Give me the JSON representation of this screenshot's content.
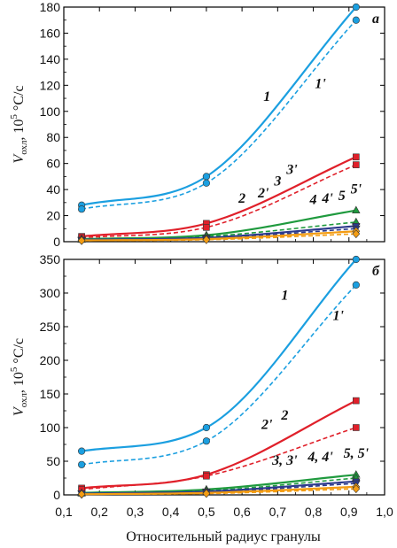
{
  "chart_data": {
    "type": "line",
    "xlabel": "Относительный радиус гранулы",
    "x_ticks": [
      "0,1",
      "0,2",
      "0,3",
      "0,4",
      "0,5",
      "0,6",
      "0,7",
      "0,8",
      "0,9",
      "1,0"
    ],
    "xlim": [
      0.1,
      1.0
    ],
    "ylabel_main": "V",
    "ylabel_sub": "охл",
    "ylabel_tail": ", 10",
    "ylabel_exp": "5",
    "ylabel_unit": " °C/с",
    "colors": {
      "1": "#1b9fe0",
      "2": "#e0202a",
      "3": "#1f9a3e",
      "4": "#2c3a8c",
      "5": "#f39c12"
    },
    "panels": [
      {
        "id": "a",
        "panel_label": "а",
        "ylim": [
          0,
          180
        ],
        "y_ticks": [
          "0",
          "20",
          "40",
          "60",
          "80",
          "100",
          "120",
          "140",
          "160",
          "180"
        ],
        "y_tick_values": [
          0,
          20,
          40,
          60,
          80,
          100,
          120,
          140,
          160,
          180
        ],
        "series": [
          {
            "key": "1",
            "style": "solid",
            "marker": "circle",
            "x": [
              0.15,
              0.5,
              0.92
            ],
            "y": [
              28,
              50,
              180
            ]
          },
          {
            "key": "1",
            "style": "dashed",
            "marker": "circle",
            "x": [
              0.15,
              0.5,
              0.92
            ],
            "y": [
              25,
              45,
              170
            ]
          },
          {
            "key": "2",
            "style": "solid",
            "marker": "square",
            "x": [
              0.15,
              0.5,
              0.92
            ],
            "y": [
              4,
              14,
              65
            ]
          },
          {
            "key": "2",
            "style": "dashed",
            "marker": "square",
            "x": [
              0.15,
              0.5,
              0.92
            ],
            "y": [
              3,
              11,
              59
            ]
          },
          {
            "key": "3",
            "style": "solid",
            "marker": "triangle",
            "x": [
              0.15,
              0.5,
              0.92
            ],
            "y": [
              2,
              5,
              24
            ]
          },
          {
            "key": "3",
            "style": "dashed",
            "marker": "triangle",
            "x": [
              0.15,
              0.5,
              0.92
            ],
            "y": [
              1.5,
              4,
              15
            ]
          },
          {
            "key": "4",
            "style": "solid",
            "marker": "triangle-down",
            "x": [
              0.15,
              0.5,
              0.92
            ],
            "y": [
              1.5,
              3,
              12
            ]
          },
          {
            "key": "4",
            "style": "dashed",
            "marker": "triangle-down",
            "x": [
              0.15,
              0.5,
              0.92
            ],
            "y": [
              1,
              2.5,
              10
            ]
          },
          {
            "key": "5",
            "style": "solid",
            "marker": "diamond",
            "x": [
              0.15,
              0.5,
              0.92
            ],
            "y": [
              1,
              2,
              8
            ]
          },
          {
            "key": "5",
            "style": "dashed",
            "marker": "diamond",
            "x": [
              0.15,
              0.5,
              0.92
            ],
            "y": [
              0.8,
              1.5,
              6
            ]
          }
        ],
        "labels": [
          {
            "text": "1",
            "x": 0.67,
            "y": 108
          },
          {
            "text": "1'",
            "x": 0.82,
            "y": 118
          },
          {
            "text": "2",
            "x": 0.6,
            "y": 30
          },
          {
            "text": "2'",
            "x": 0.66,
            "y": 34
          },
          {
            "text": "3",
            "x": 0.7,
            "y": 43
          },
          {
            "text": "3'",
            "x": 0.74,
            "y": 52
          },
          {
            "text": "4",
            "x": 0.8,
            "y": 29
          },
          {
            "text": "4'",
            "x": 0.84,
            "y": 30
          },
          {
            "text": "5",
            "x": 0.88,
            "y": 32
          },
          {
            "text": "5'",
            "x": 0.92,
            "y": 37
          }
        ]
      },
      {
        "id": "b",
        "panel_label": "б",
        "ylim": [
          0,
          350
        ],
        "y_ticks": [
          "0",
          "50",
          "100",
          "150",
          "200",
          "250",
          "300",
          "350"
        ],
        "y_tick_values": [
          0,
          50,
          100,
          150,
          200,
          250,
          300,
          350
        ],
        "series": [
          {
            "key": "1",
            "style": "solid",
            "marker": "circle",
            "x": [
              0.15,
              0.5,
              0.92
            ],
            "y": [
              65,
              100,
              350
            ]
          },
          {
            "key": "1",
            "style": "dashed",
            "marker": "circle",
            "x": [
              0.15,
              0.5,
              0.92
            ],
            "y": [
              45,
              80,
              312
            ]
          },
          {
            "key": "2",
            "style": "solid",
            "marker": "square",
            "x": [
              0.15,
              0.5,
              0.92
            ],
            "y": [
              10,
              30,
              140
            ]
          },
          {
            "key": "2",
            "style": "dashed",
            "marker": "square",
            "x": [
              0.15,
              0.5,
              0.92
            ],
            "y": [
              8,
              28,
              100
            ]
          },
          {
            "key": "3",
            "style": "solid",
            "marker": "triangle",
            "x": [
              0.15,
              0.5,
              0.92
            ],
            "y": [
              3,
              8,
              30
            ]
          },
          {
            "key": "3",
            "style": "dashed",
            "marker": "triangle",
            "x": [
              0.15,
              0.5,
              0.92
            ],
            "y": [
              2,
              6,
              25
            ]
          },
          {
            "key": "4",
            "style": "solid",
            "marker": "triangle-down",
            "x": [
              0.15,
              0.5,
              0.92
            ],
            "y": [
              2,
              5,
              20
            ]
          },
          {
            "key": "4",
            "style": "dashed",
            "marker": "triangle-down",
            "x": [
              0.15,
              0.5,
              0.92
            ],
            "y": [
              2,
              4,
              17
            ]
          },
          {
            "key": "5",
            "style": "solid",
            "marker": "diamond",
            "x": [
              0.15,
              0.5,
              0.92
            ],
            "y": [
              1,
              3,
              12
            ]
          },
          {
            "key": "5",
            "style": "dashed",
            "marker": "diamond",
            "x": [
              0.15,
              0.5,
              0.92
            ],
            "y": [
              1,
              2,
              9
            ]
          }
        ],
        "labels": [
          {
            "text": "1",
            "x": 0.72,
            "y": 290
          },
          {
            "text": "1'",
            "x": 0.87,
            "y": 260
          },
          {
            "text": "2",
            "x": 0.72,
            "y": 112
          },
          {
            "text": "2'",
            "x": 0.67,
            "y": 98
          },
          {
            "text": "3, 3'",
            "x": 0.72,
            "y": 45
          },
          {
            "text": "4, 4'",
            "x": 0.82,
            "y": 50
          },
          {
            "text": "5, 5'",
            "x": 0.92,
            "y": 55
          }
        ]
      }
    ]
  }
}
